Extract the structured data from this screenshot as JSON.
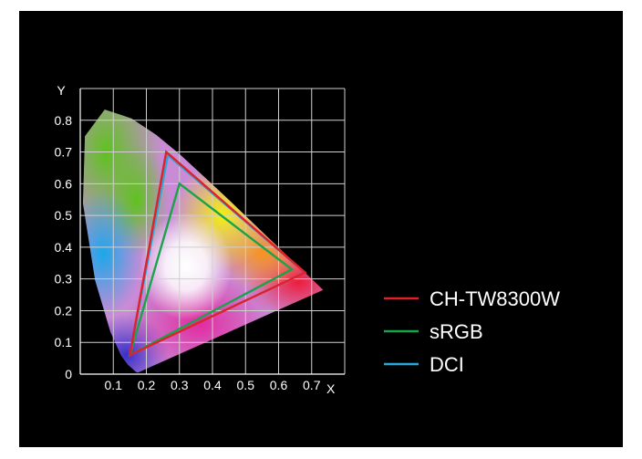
{
  "chart_data": {
    "type": "line",
    "title": "",
    "xlabel": "X",
    "ylabel": "Y",
    "xlim": [
      0,
      0.8
    ],
    "ylim": [
      0,
      0.9
    ],
    "x_ticks": [
      "0.1",
      "0.2",
      "0.3",
      "0.4",
      "0.5",
      "0.6",
      "0.7"
    ],
    "y_ticks": [
      "0",
      "0.1",
      "0.2",
      "0.3",
      "0.4",
      "0.5",
      "0.6",
      "0.7",
      "0.8"
    ],
    "grid": true,
    "legend_position": "right",
    "series": [
      {
        "name": "CH-TW8300W",
        "color": "#e0202a",
        "points": [
          [
            0.68,
            0.32
          ],
          [
            0.26,
            0.7
          ],
          [
            0.15,
            0.06
          ]
        ]
      },
      {
        "name": "sRGB",
        "color": "#1aa34a",
        "points": [
          [
            0.64,
            0.33
          ],
          [
            0.3,
            0.6
          ],
          [
            0.15,
            0.06
          ]
        ]
      },
      {
        "name": "DCI",
        "color": "#2aa7d8",
        "points": [
          [
            0.68,
            0.32
          ],
          [
            0.265,
            0.69
          ],
          [
            0.15,
            0.06
          ]
        ]
      }
    ],
    "spectral_locus": [
      [
        0.175,
        0.005
      ],
      [
        0.172,
        0.005
      ],
      [
        0.166,
        0.009
      ],
      [
        0.157,
        0.018
      ],
      [
        0.144,
        0.03
      ],
      [
        0.124,
        0.058
      ],
      [
        0.091,
        0.133
      ],
      [
        0.045,
        0.295
      ],
      [
        0.008,
        0.538
      ],
      [
        0.014,
        0.75
      ],
      [
        0.074,
        0.834
      ],
      [
        0.155,
        0.806
      ],
      [
        0.23,
        0.754
      ],
      [
        0.302,
        0.692
      ],
      [
        0.373,
        0.624
      ],
      [
        0.444,
        0.555
      ],
      [
        0.512,
        0.487
      ],
      [
        0.575,
        0.424
      ],
      [
        0.627,
        0.372
      ],
      [
        0.666,
        0.334
      ],
      [
        0.692,
        0.308
      ],
      [
        0.714,
        0.286
      ],
      [
        0.735,
        0.265
      ]
    ]
  }
}
